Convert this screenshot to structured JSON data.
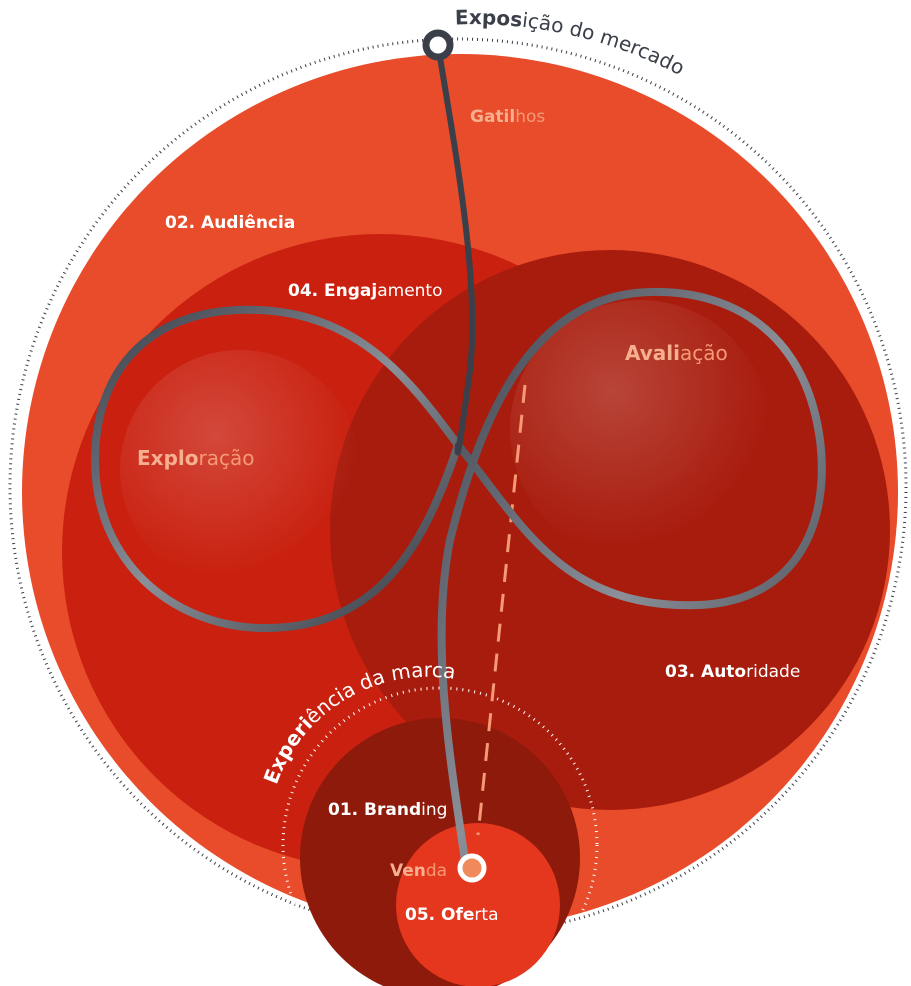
{
  "outer_ring": {
    "bold": "Expos",
    "regular": "ição do mercado"
  },
  "inner_ring": {
    "bold": "Experi",
    "regular": "ência da marca"
  },
  "labels": {
    "gatilhos": {
      "bold": "Gatil",
      "regular": "hos"
    },
    "audiencia": {
      "bold": "02. Audiência",
      "regular": ""
    },
    "engajamento": {
      "bold": "04. Engaj",
      "regular": "amento"
    },
    "avaliacao": {
      "bold": "Avali",
      "regular": "ação"
    },
    "exploracao": {
      "bold": "Explo",
      "regular": "ração"
    },
    "autoridade": {
      "bold": "03. Auto",
      "regular": "ridade"
    },
    "branding": {
      "bold": "01. Brand",
      "regular": "ing"
    },
    "venda": {
      "bold": "Ven",
      "regular": "da"
    },
    "oferta": {
      "bold": "05. Ofe",
      "regular": "rta"
    }
  }
}
